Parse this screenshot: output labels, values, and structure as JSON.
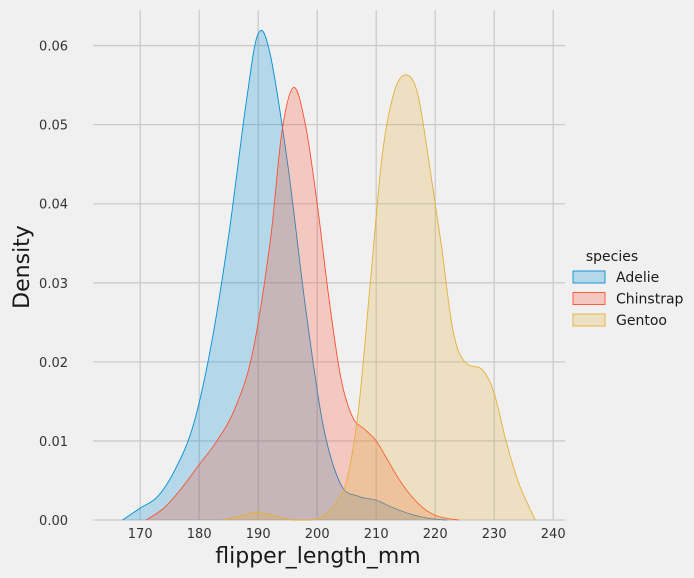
{
  "chart_data": {
    "type": "area",
    "xlabel": "flipper_length_mm",
    "ylabel": "Density",
    "xlim": [
      162,
      242
    ],
    "ylim": [
      0,
      0.0645
    ],
    "xticks": [
      170,
      180,
      190,
      200,
      210,
      220,
      230,
      240
    ],
    "yticks": [
      0.0,
      0.01,
      0.02,
      0.03,
      0.04,
      0.05,
      0.06
    ],
    "ytick_labels": [
      "0.00",
      "0.01",
      "0.02",
      "0.03",
      "0.04",
      "0.05",
      "0.06"
    ],
    "grid": true,
    "legend": {
      "title": "species",
      "placement": "right"
    },
    "series": [
      {
        "name": "Adelie",
        "color": "#008fd5",
        "x": [
          167,
          170,
          173,
          176,
          179,
          182,
          185,
          188,
          190,
          192,
          195,
          198,
          201,
          204,
          207,
          210,
          213,
          216,
          219,
          222
        ],
        "y": [
          0.0,
          0.0015,
          0.003,
          0.0065,
          0.012,
          0.022,
          0.036,
          0.053,
          0.0615,
          0.059,
          0.045,
          0.027,
          0.012,
          0.0045,
          0.003,
          0.0025,
          0.0015,
          0.0007,
          0.0002,
          0.0
        ]
      },
      {
        "name": "Chinstrap",
        "color": "#fc4f30",
        "x": [
          171,
          174,
          177,
          180,
          183,
          186,
          189,
          192,
          194,
          196,
          198,
          200,
          202,
          204,
          206,
          208,
          210,
          212,
          214,
          216,
          218,
          220,
          222,
          224
        ],
        "y": [
          0.0,
          0.0015,
          0.004,
          0.007,
          0.01,
          0.014,
          0.021,
          0.035,
          0.049,
          0.0547,
          0.05,
          0.04,
          0.028,
          0.018,
          0.013,
          0.0115,
          0.01,
          0.0075,
          0.005,
          0.003,
          0.0015,
          0.0006,
          0.0002,
          0.0
        ]
      },
      {
        "name": "Gentoo",
        "color": "#e5ae38",
        "x": [
          184,
          187,
          190,
          193,
          196,
          199,
          201,
          203,
          205,
          207,
          209,
          211,
          213,
          215,
          217,
          219,
          221,
          223,
          225,
          228,
          230,
          232,
          234,
          236,
          237
        ],
        "y": [
          0.0,
          0.0005,
          0.001,
          0.0005,
          0.0,
          0.0,
          0.0005,
          0.002,
          0.005,
          0.014,
          0.03,
          0.046,
          0.054,
          0.0563,
          0.054,
          0.045,
          0.035,
          0.024,
          0.02,
          0.019,
          0.016,
          0.01,
          0.005,
          0.0015,
          0.0
        ]
      }
    ]
  }
}
